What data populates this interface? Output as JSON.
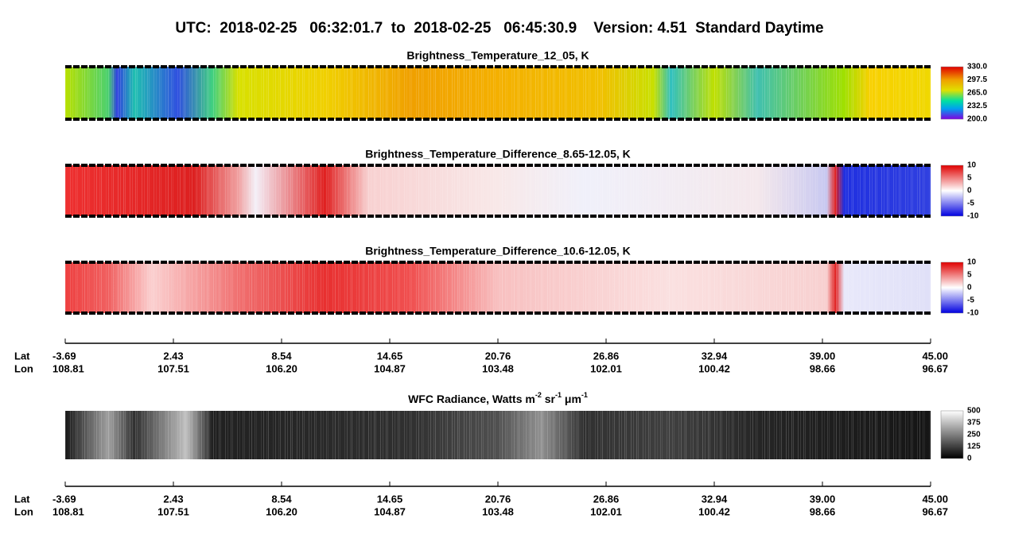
{
  "header": {
    "title": "UTC:  2018-02-25   06:32:01.7  to  2018-02-25   06:45:30.9    Version: 4.51  Standard Daytime"
  },
  "panels": [
    {
      "title": "Brightness_Temperature_12_05, K",
      "colorbar": [
        "330.0",
        "297.5",
        "265.0",
        "232.5",
        "200.0"
      ]
    },
    {
      "title": "Brightness_Temperature_Difference_8.65-12.05, K",
      "colorbar": [
        "10",
        "5",
        "0",
        "-5",
        "-10"
      ]
    },
    {
      "title": "Brightness_Temperature_Difference_10.6-12.05, K",
      "colorbar": [
        "10",
        "5",
        "0",
        "-5",
        "-10"
      ]
    }
  ],
  "wfc": {
    "title_parts": [
      "WFC Radiance, Watts m",
      "-2",
      " sr",
      "-1",
      " μm",
      "-1"
    ],
    "colorbar": [
      "500",
      "375",
      "250",
      "125",
      "0"
    ]
  },
  "axis_labels": {
    "lat": "Lat",
    "lon": "Lon"
  },
  "lat": [
    "-3.69",
    "2.43",
    "8.54",
    "14.65",
    "20.76",
    "26.86",
    "32.94",
    "39.00",
    "45.00"
  ],
  "lon": [
    "108.81",
    "107.51",
    "106.20",
    "104.87",
    "103.48",
    "102.01",
    "100.42",
    "98.66",
    "96.67"
  ]
}
